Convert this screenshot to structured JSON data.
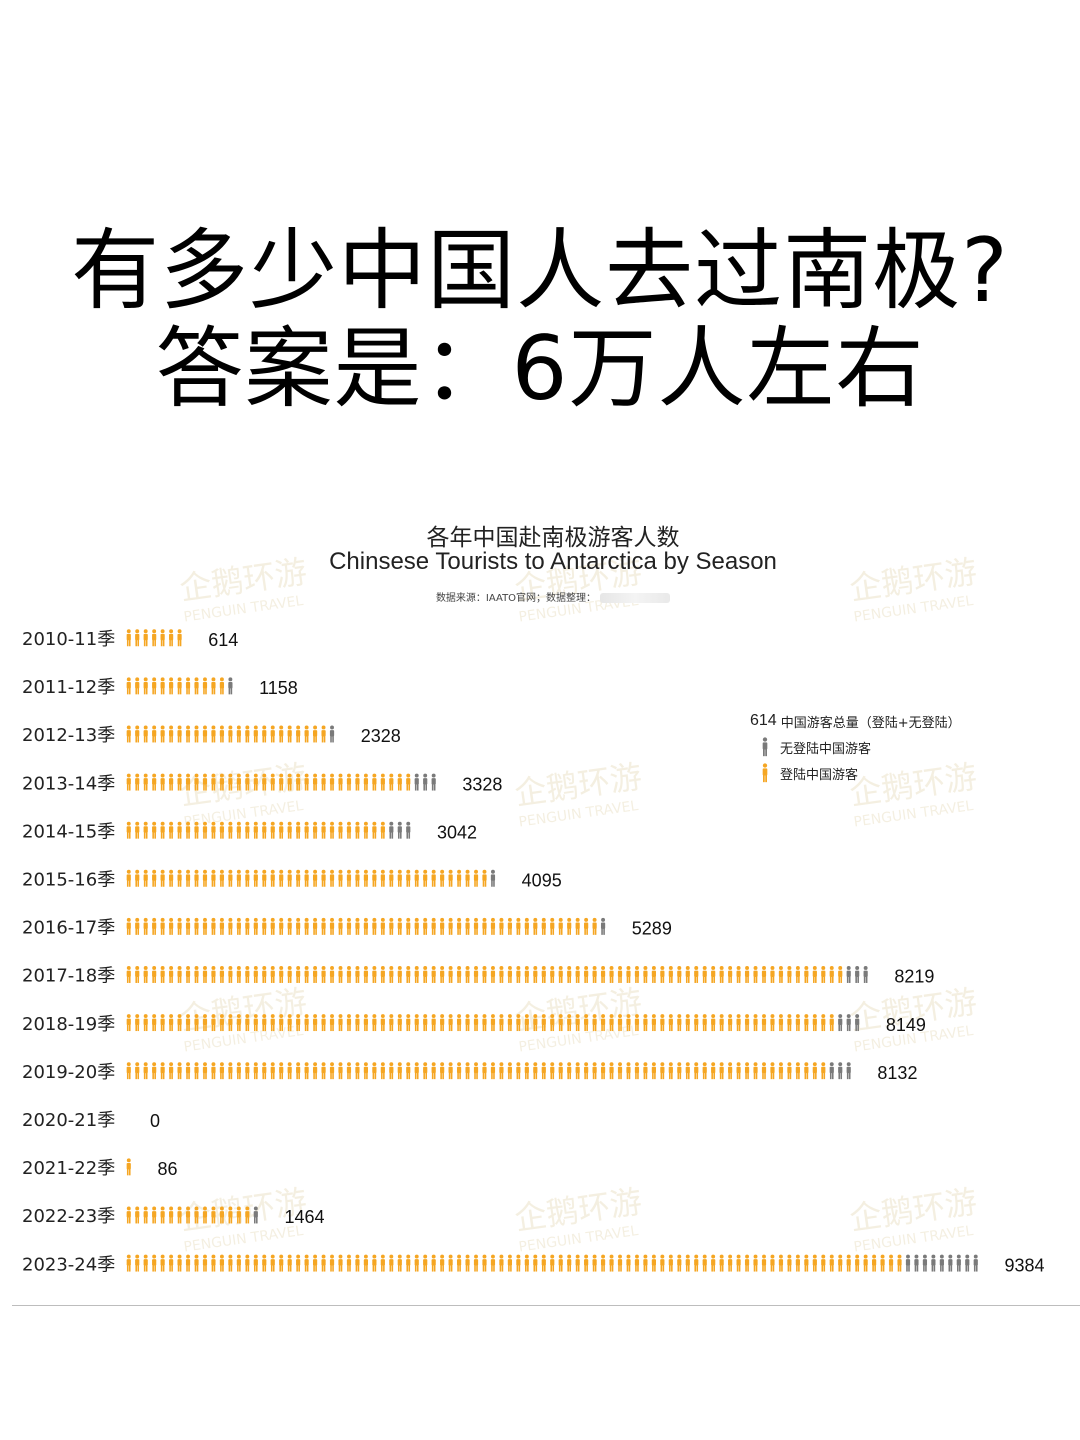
{
  "headline": {
    "line1": "有多少中国人去过南极?",
    "line2": "答案是：6万人左右"
  },
  "watermark": {
    "text_zh": "企鹅环游",
    "text_en": "PENGUIN TRAVEL"
  },
  "chart_data": {
    "type": "bar",
    "style": "pictograph",
    "orientation": "horizontal",
    "title": "各年中国赴南极游客人数",
    "subtitle": "Chinsese Tourists to Antarctica by Season",
    "source": "数据来源：IAATO官网；数据整理：",
    "categories": [
      "2010-11季",
      "2011-12季",
      "2012-13季",
      "2013-14季",
      "2014-15季",
      "2015-16季",
      "2016-17季",
      "2017-18季",
      "2018-19季",
      "2019-20季",
      "2020-21季",
      "2021-22季",
      "2022-23季",
      "2023-24季"
    ],
    "values": [
      614,
      1158,
      2328,
      3328,
      3042,
      4095,
      5289,
      8219,
      8149,
      8132,
      0,
      86,
      1464,
      9384
    ],
    "series": [
      {
        "name": "登陆中国游客",
        "color": "#F5A623",
        "icon_count": [
          7,
          12,
          24,
          34,
          31,
          43,
          56,
          85,
          84,
          83,
          0,
          1,
          15,
          92
        ]
      },
      {
        "name": "无登陆中国游客",
        "color": "#7a7a7a",
        "icon_count": [
          0,
          1,
          1,
          3,
          3,
          1,
          1,
          3,
          3,
          3,
          0,
          0,
          1,
          9
        ]
      }
    ],
    "legend": {
      "sample_value": "614",
      "total_label": "中国游客总量（登陆+无登陆）",
      "position": "right"
    }
  }
}
